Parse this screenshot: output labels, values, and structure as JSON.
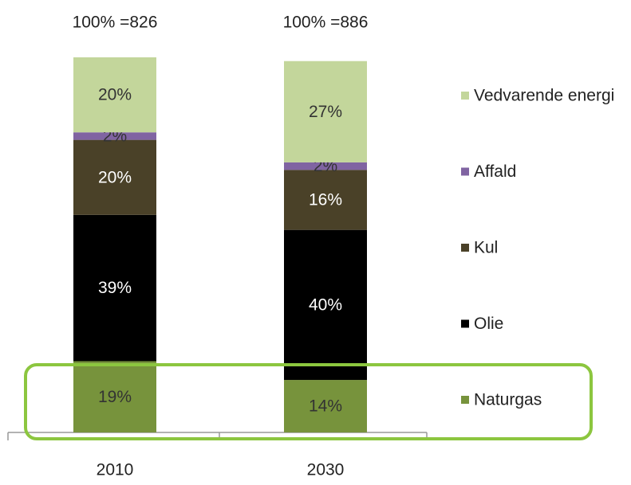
{
  "chart_data": {
    "type": "stacked_bar",
    "categories": [
      "2010",
      "2030"
    ],
    "totals": [
      "100% =826",
      "100% =886"
    ],
    "ylim": [
      0,
      100
    ],
    "series": [
      {
        "name": "Naturgas",
        "color": "#77933c",
        "values": [
          19,
          14
        ],
        "value_labels": [
          "19%",
          "14%"
        ]
      },
      {
        "name": "Olie",
        "color": "#000000",
        "values": [
          39,
          40
        ],
        "value_labels": [
          "39%",
          "40%"
        ]
      },
      {
        "name": "Kul",
        "color": "#4a4128",
        "values": [
          20,
          16
        ],
        "value_labels": [
          "20%",
          "16%"
        ]
      },
      {
        "name": "Affald",
        "color": "#8064a2",
        "values": [
          2,
          2
        ],
        "value_labels": [
          "2%",
          "2%"
        ]
      },
      {
        "name": "Vedvarende energi",
        "color": "#c3d69b",
        "values": [
          20,
          27
        ],
        "value_labels": [
          "20%",
          "27%"
        ]
      }
    ]
  }
}
